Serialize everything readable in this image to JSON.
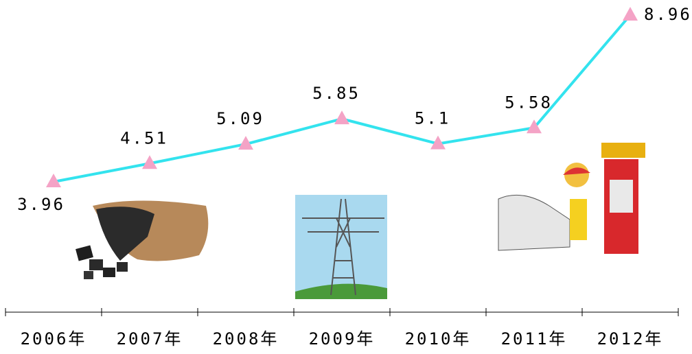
{
  "chart_data": {
    "type": "line",
    "categories": [
      "2006年",
      "2007年",
      "2008年",
      "2009年",
      "2010年",
      "2011年",
      "2012年"
    ],
    "values": [
      3.96,
      4.51,
      5.09,
      5.85,
      5.1,
      5.58,
      8.96
    ],
    "color": "#33e3ee",
    "marker_color": "#f4a3c6"
  }
}
